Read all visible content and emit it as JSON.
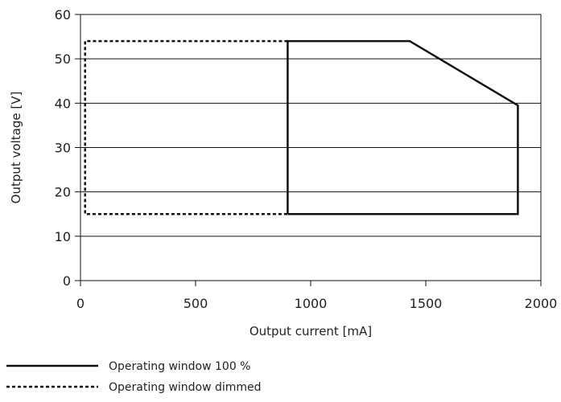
{
  "chart_data": {
    "type": "line",
    "title": "",
    "xlabel": "Output current [mA]",
    "ylabel": "Output voltage [V]",
    "xlim": [
      0,
      2000
    ],
    "ylim": [
      0,
      60
    ],
    "x_ticks": [
      0,
      500,
      1000,
      1500,
      2000
    ],
    "y_ticks": [
      0,
      10,
      20,
      30,
      40,
      50,
      60
    ],
    "grid": "horizontal",
    "legend_position": "bottom-left",
    "series": [
      {
        "name": "Operating window 100 %",
        "style": "solid",
        "color": "#111111",
        "points": [
          [
            900,
            15
          ],
          [
            900,
            54
          ],
          [
            1430,
            54
          ],
          [
            1900,
            39.5
          ],
          [
            1900,
            15
          ],
          [
            900,
            15
          ]
        ]
      },
      {
        "name": "Operating window dimmed",
        "style": "dotted",
        "color": "#111111",
        "points": [
          [
            900,
            54
          ],
          [
            20,
            54
          ],
          [
            20,
            15
          ],
          [
            900,
            15
          ]
        ]
      }
    ]
  }
}
